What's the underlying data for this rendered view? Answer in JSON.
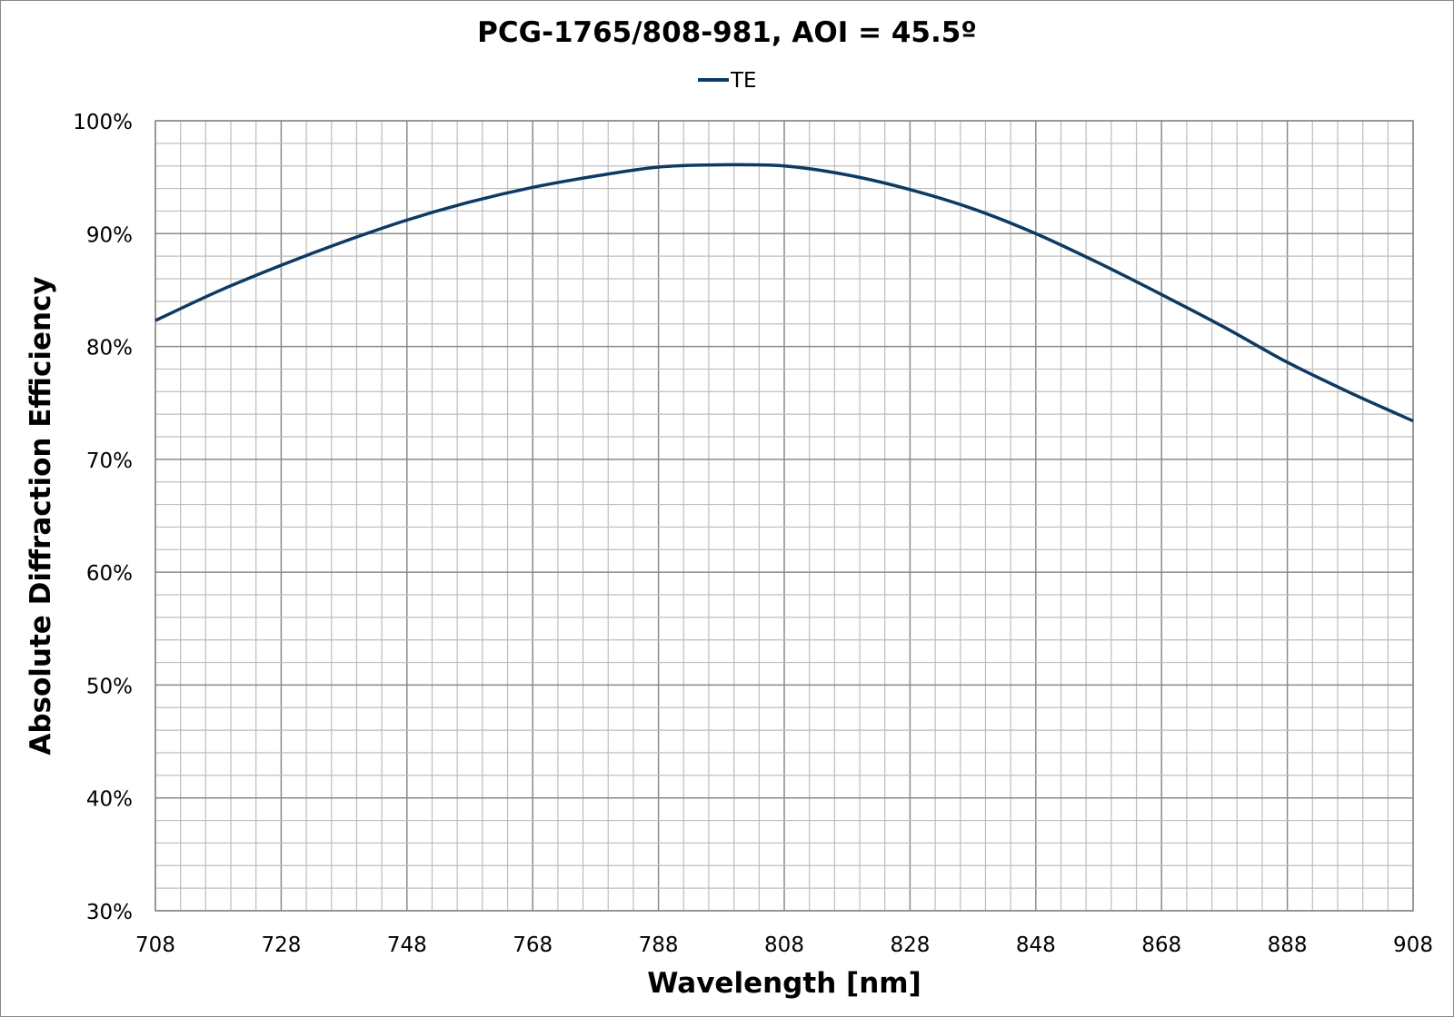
{
  "chart_data": {
    "type": "line",
    "title": "PCG-1765/808-981, AOI = 45.5º",
    "xlabel": "Wavelength [nm]",
    "ylabel": "Absolute Diffraction Efficiency",
    "xlim": [
      708,
      908
    ],
    "ylim": [
      30,
      100
    ],
    "x_ticks": [
      "708",
      "728",
      "748",
      "768",
      "788",
      "808",
      "828",
      "848",
      "868",
      "888",
      "908"
    ],
    "y_ticks": [
      "30%",
      "40%",
      "50%",
      "60%",
      "70%",
      "80%",
      "90%",
      "100%"
    ],
    "x_minor_step": 4,
    "y_minor_step": 2,
    "grid": true,
    "legend_position": "top-center",
    "series": [
      {
        "name": "TE",
        "color": "#0d3a63",
        "x": [
          708,
          718,
          728,
          738,
          748,
          758,
          768,
          778,
          788,
          798,
          808,
          818,
          828,
          838,
          848,
          858,
          868,
          878,
          888,
          898,
          908
        ],
        "y": [
          82.3,
          84.9,
          87.2,
          89.3,
          91.2,
          92.8,
          94.1,
          95.1,
          95.9,
          96.1,
          96.0,
          95.2,
          93.9,
          92.2,
          90.0,
          87.4,
          84.6,
          81.7,
          78.6,
          75.9,
          73.4
        ]
      }
    ]
  }
}
